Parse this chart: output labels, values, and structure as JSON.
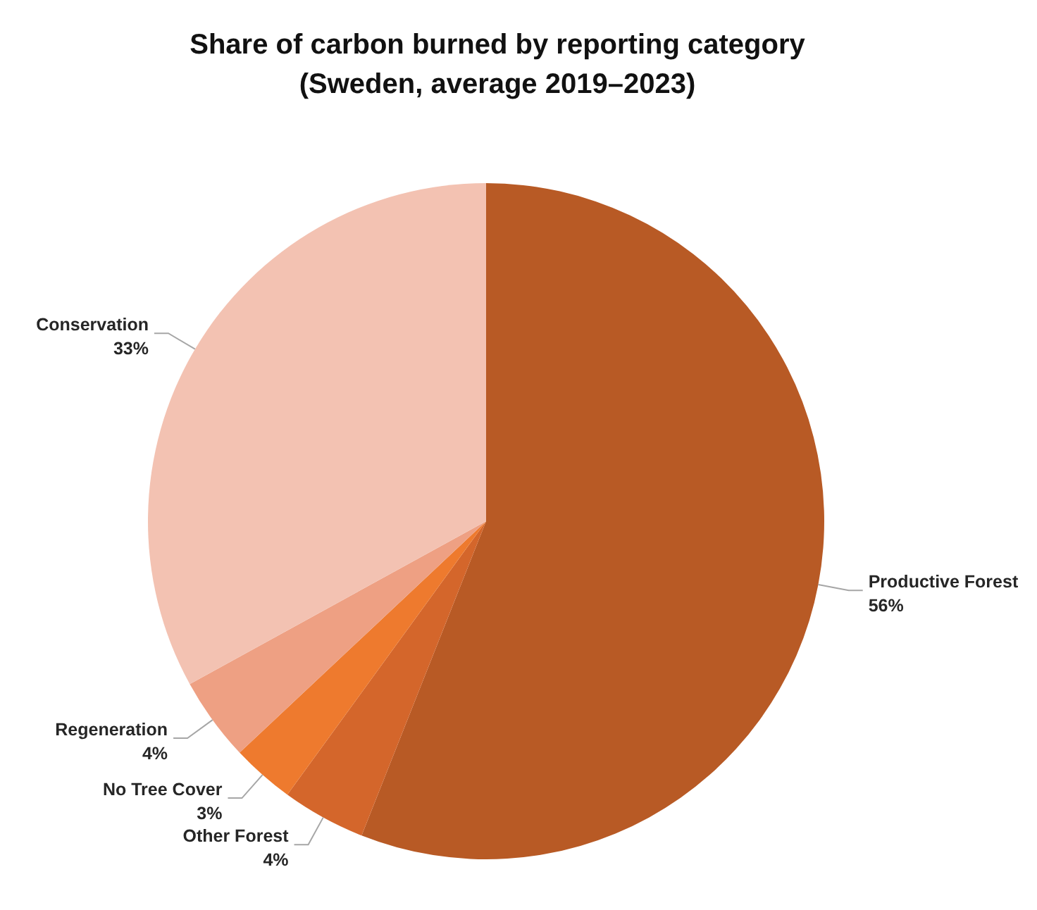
{
  "chart_data": {
    "type": "pie",
    "title": "Share of carbon burned by reporting category\n(Sweden, average 2019–2023)",
    "categories": [
      "Productive Forest",
      "Other Forest",
      "No Tree Cover",
      "Regeneration",
      "Conservation"
    ],
    "values": [
      56,
      4,
      3,
      4,
      33
    ],
    "colors": [
      "#b85a25",
      "#d4662b",
      "#ee7a2e",
      "#eea083",
      "#f3c2b2"
    ],
    "value_labels": [
      "56%",
      "4%",
      "3%",
      "4%",
      "33%"
    ]
  }
}
